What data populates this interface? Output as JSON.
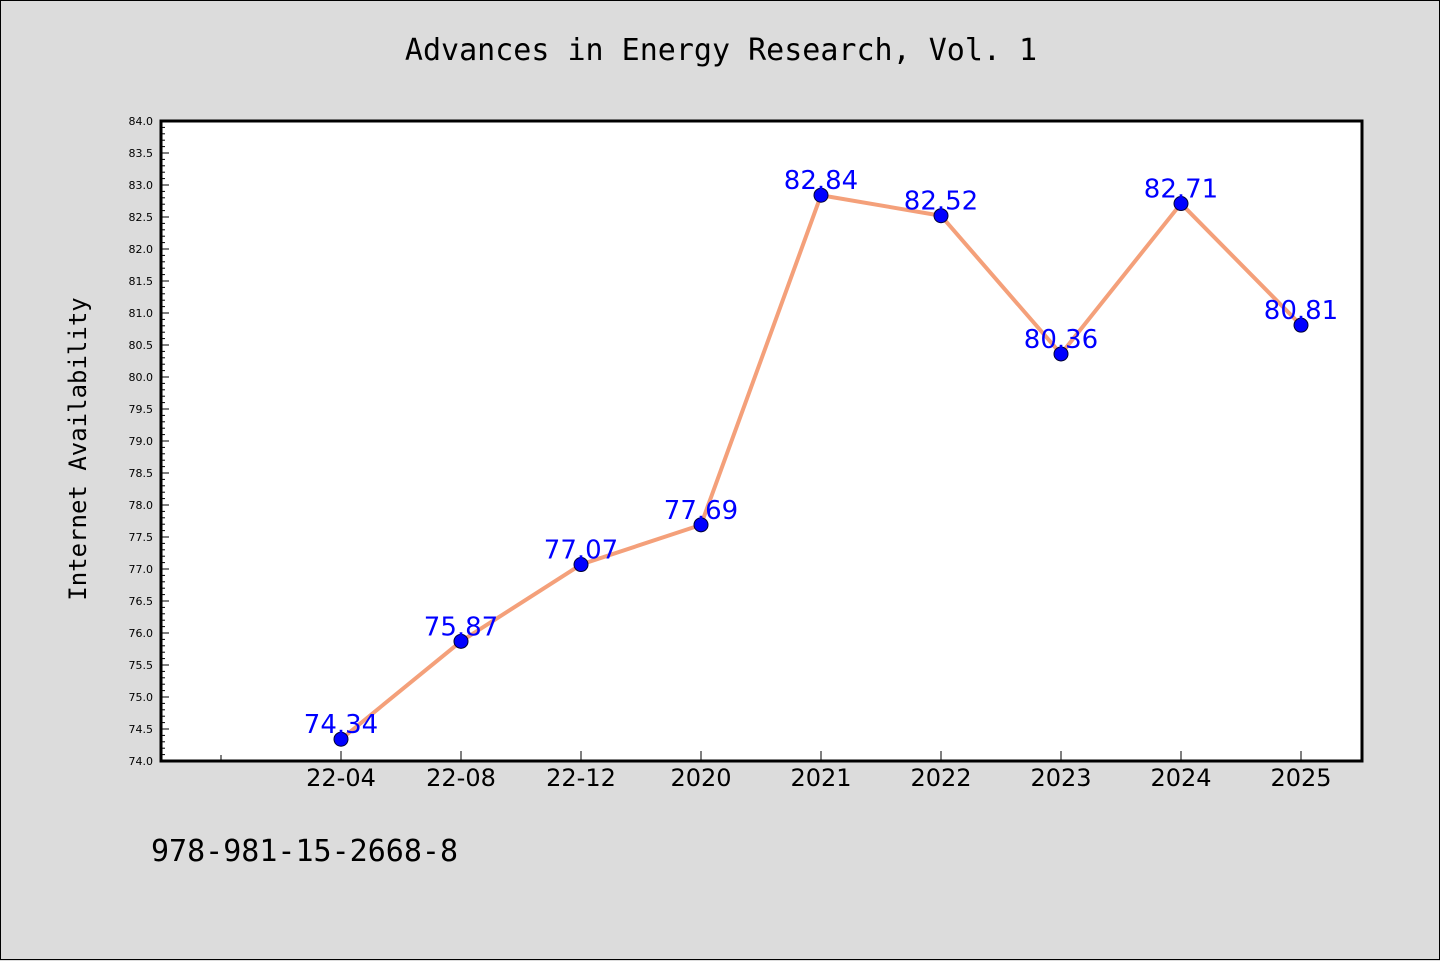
{
  "chart_data": {
    "type": "line",
    "title": "Advances in Energy Research, Vol. 1",
    "xlabel": "",
    "ylabel": "Internet Availability",
    "categories": [
      "22-04",
      "22-08",
      "22-12",
      "2020",
      "2021",
      "2022",
      "2023",
      "2024",
      "2025"
    ],
    "series": [
      {
        "values": [
          74.34,
          75.87,
          77.07,
          77.69,
          82.84,
          82.52,
          80.36,
          82.71,
          80.81
        ]
      }
    ],
    "data_labels": [
      "74.34",
      "75.87",
      "77.07",
      "77.69",
      "82.84",
      "82.52",
      "80.36",
      "82.71",
      "80.81"
    ],
    "ylim": [
      74.0,
      84.0
    ],
    "yticks": [
      "74.0",
      "74.5",
      "75.0",
      "75.5",
      "76.0",
      "76.5",
      "77.0",
      "77.5",
      "78.0",
      "78.5",
      "79.0",
      "79.5",
      "80.0",
      "80.5",
      "81.0",
      "81.5",
      "82.0",
      "82.5",
      "83.0",
      "83.5",
      "84.0"
    ],
    "grid": false,
    "line_color": "#f4a07a",
    "marker_color": "#0000ff",
    "label_color": "#0000ff"
  },
  "footer": {
    "isbn": "978-981-15-2668-8"
  }
}
